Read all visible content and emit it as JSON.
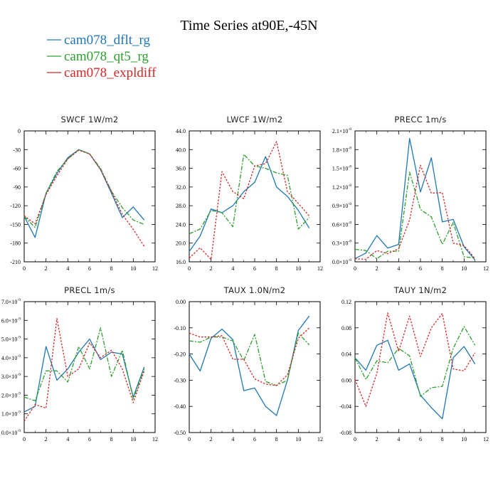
{
  "title": "Time Series at90E,-45N",
  "legend": [
    {
      "label": "cam078_dflt_rg",
      "color": "#1f77b4"
    },
    {
      "label": "cam078_qt5_rg",
      "color": "#2ca02c"
    },
    {
      "label": "cam078_expldiff",
      "color": "#d62728"
    }
  ],
  "chart_data": [
    {
      "type": "line",
      "title": "SWCF   1W/m2",
      "x": [
        0,
        1,
        2,
        3,
        4,
        5,
        6,
        7,
        8,
        9,
        10,
        11
      ],
      "xlim": [
        0,
        12
      ],
      "xticks": [
        "0",
        "2",
        "4",
        "6",
        "8",
        "10",
        "12"
      ],
      "ylim": [
        -210,
        0
      ],
      "yticks": [
        "0",
        "-30",
        "-60",
        "-90",
        "-120",
        "-150",
        "-180",
        "-210"
      ],
      "series": [
        {
          "name": "cam078_dflt_rg",
          "values": [
            -137,
            -171,
            -100,
            -68,
            -43,
            -30,
            -37,
            -62,
            -100,
            -139,
            -122,
            -143
          ]
        },
        {
          "name": "cam078_qt5_rg",
          "values": [
            -137,
            -155,
            -100,
            -65,
            -45,
            -30,
            -37,
            -60,
            -97,
            -123,
            -143,
            -150
          ]
        },
        {
          "name": "cam078_expldiff",
          "values": [
            -136,
            -149,
            -102,
            -72,
            -45,
            -31,
            -37,
            -62,
            -97,
            -134,
            -158,
            -185
          ]
        }
      ]
    },
    {
      "type": "line",
      "title": "LWCF   1W/m2",
      "x": [
        0,
        1,
        2,
        3,
        4,
        5,
        6,
        7,
        8,
        9,
        10,
        11
      ],
      "xlim": [
        0,
        12
      ],
      "xticks": [
        "0",
        "2",
        "4",
        "6",
        "8",
        "10",
        "12"
      ],
      "ylim": [
        16,
        44
      ],
      "yticks": [
        "16.0",
        "20.0",
        "24.0",
        "28.0",
        "32.0",
        "36.0",
        "40.0",
        "44.0"
      ],
      "series": [
        {
          "name": "cam078_dflt_rg",
          "values": [
            18.2,
            21.5,
            27.3,
            26.5,
            28.0,
            31.0,
            33.0,
            38.5,
            32.0,
            30.0,
            27.0,
            23.2
          ]
        },
        {
          "name": "cam078_qt5_rg",
          "values": [
            22.0,
            23.0,
            27.0,
            26.5,
            23.5,
            39.0,
            36.5,
            36.0,
            35.0,
            34.5,
            23.0,
            25.5
          ]
        },
        {
          "name": "cam078_expldiff",
          "values": [
            16.8,
            19.0,
            16.5,
            35.3,
            31.0,
            29.5,
            36.5,
            37.0,
            41.7,
            31.0,
            28.5,
            25.8
          ]
        }
      ]
    },
    {
      "type": "line",
      "title": "PRECC   1m/s",
      "x": [
        0,
        1,
        2,
        3,
        4,
        5,
        6,
        7,
        8,
        9,
        10,
        11
      ],
      "xlim": [
        0,
        12
      ],
      "xticks": [
        "0",
        "2",
        "4",
        "6",
        "8",
        "10",
        "12"
      ],
      "ylim": [
        0,
        2.1
      ],
      "yticks": [
        "0.0×10",
        "0.3×10",
        "0.6×10",
        "0.9×10",
        "1.2×10",
        "1.5×10",
        "1.8×10",
        "2.1×10"
      ],
      "ytick_exponent": "-8",
      "series": [
        {
          "name": "cam078_dflt_rg",
          "values": [
            0.05,
            0.14,
            0.42,
            0.22,
            0.28,
            1.98,
            1.12,
            1.67,
            0.64,
            0.68,
            0.24,
            0.03
          ]
        },
        {
          "name": "cam078_qt5_rg",
          "values": [
            0.2,
            0.18,
            0.05,
            0.17,
            0.17,
            1.44,
            0.84,
            0.72,
            0.28,
            0.63,
            0.08,
            0.06
          ]
        },
        {
          "name": "cam078_expldiff",
          "values": [
            0.05,
            0.04,
            0.18,
            0.13,
            0.21,
            0.67,
            1.55,
            1.1,
            1.11,
            0.3,
            0.26,
            0.05
          ]
        }
      ]
    },
    {
      "type": "line",
      "title": "PRECL   1m/s",
      "x": [
        0,
        1,
        2,
        3,
        4,
        5,
        6,
        7,
        8,
        9,
        10,
        11
      ],
      "xlim": [
        0,
        12
      ],
      "xticks": [
        "0",
        "2",
        "4",
        "6",
        "8",
        "10",
        "12"
      ],
      "ylim": [
        0,
        7
      ],
      "yticks": [
        "0.0×10",
        "1.0×10",
        "2.0×10",
        "3.0×10",
        "4.0×10",
        "5.0×10",
        "6.0×10",
        "7.0×10"
      ],
      "ytick_exponent": "-9",
      "series": [
        {
          "name": "cam078_dflt_rg",
          "values": [
            1.1,
            1.4,
            4.6,
            2.8,
            3.4,
            4.3,
            5.0,
            3.9,
            4.3,
            4.2,
            1.9,
            3.5
          ]
        },
        {
          "name": "cam078_qt5_rg",
          "values": [
            1.9,
            1.7,
            3.3,
            3.3,
            2.7,
            4.6,
            3.4,
            5.6,
            3.0,
            4.4,
            1.8,
            3.4
          ]
        },
        {
          "name": "cam078_expldiff",
          "values": [
            0.6,
            1.5,
            1.3,
            6.1,
            3.0,
            3.4,
            4.8,
            4.0,
            4.4,
            3.4,
            1.6,
            3.3
          ]
        }
      ]
    },
    {
      "type": "line",
      "title": "TAUX   1.0N/m2",
      "x": [
        0,
        1,
        2,
        3,
        4,
        5,
        6,
        7,
        8,
        9,
        10,
        11
      ],
      "xlim": [
        0,
        12
      ],
      "xticks": [
        "0",
        "2",
        "4",
        "6",
        "8",
        "10",
        "12"
      ],
      "ylim": [
        -0.5,
        0
      ],
      "yticks": [
        "0.00",
        "-0.10",
        "-0.20",
        "-0.30",
        "-0.40",
        "-0.50"
      ],
      "series": [
        {
          "name": "cam078_dflt_rg",
          "values": [
            -0.2,
            -0.265,
            -0.14,
            -0.105,
            -0.145,
            -0.34,
            -0.33,
            -0.4,
            -0.435,
            -0.3,
            -0.11,
            -0.055
          ]
        },
        {
          "name": "cam078_qt5_rg",
          "values": [
            -0.15,
            -0.155,
            -0.135,
            -0.135,
            -0.15,
            -0.225,
            -0.125,
            -0.305,
            -0.32,
            -0.3,
            -0.12,
            -0.165
          ]
        },
        {
          "name": "cam078_expldiff",
          "values": [
            -0.12,
            -0.135,
            -0.135,
            -0.13,
            -0.22,
            -0.22,
            -0.295,
            -0.315,
            -0.32,
            -0.28,
            -0.14,
            -0.1
          ]
        }
      ]
    },
    {
      "type": "line",
      "title": "TAUY   1N/m2",
      "x": [
        0,
        1,
        2,
        3,
        4,
        5,
        6,
        7,
        8,
        9,
        10,
        11
      ],
      "xlim": [
        0,
        12
      ],
      "xticks": [
        "0",
        "2",
        "4",
        "6",
        "8",
        "10",
        "12"
      ],
      "ylim": [
        -0.09,
        0.12
      ],
      "yticks": [
        "-0.08",
        "-0.04",
        "0.00",
        "0.04",
        "0.08",
        "0.12"
      ],
      "series": [
        {
          "name": "cam078_dflt_rg",
          "values": [
            0.03,
            0.01,
            0.05,
            0.058,
            0.01,
            0.02,
            -0.03,
            -0.05,
            -0.068,
            0.03,
            0.048,
            0.02
          ]
        },
        {
          "name": "cam078_qt5_rg",
          "values": [
            0.03,
            -0.005,
            0.025,
            0.022,
            0.045,
            0.033,
            -0.032,
            -0.018,
            -0.016,
            0.045,
            0.08,
            0.05
          ]
        },
        {
          "name": "cam078_expldiff",
          "values": [
            -0.005,
            -0.048,
            0.005,
            0.102,
            0.04,
            0.097,
            0.032,
            0.078,
            0.101,
            0.012,
            0.009,
            0.038
          ]
        }
      ]
    }
  ]
}
